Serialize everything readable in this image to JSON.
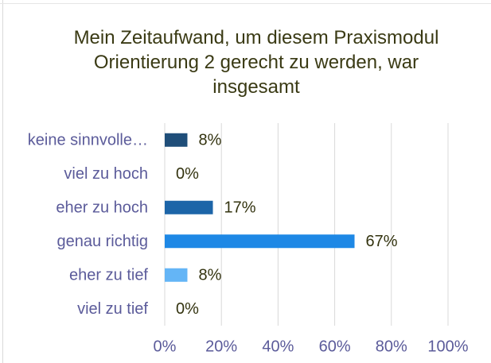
{
  "chart_data": {
    "type": "bar",
    "orientation": "horizontal",
    "title": "Mein Zeitaufwand, um diesem Praxismodul Orientierung 2 gerecht zu werden, war insgesamt",
    "categories": [
      "keine sinnvolle…",
      "viel zu hoch",
      "eher zu hoch",
      "genau richtig",
      "eher zu tief",
      "viel zu tief"
    ],
    "values": [
      8,
      0,
      17,
      67,
      8,
      0
    ],
    "value_labels": [
      "8%",
      "0%",
      "17%",
      "67%",
      "8%",
      "0%"
    ],
    "colors": [
      "#1f4e79",
      "#1f4e79",
      "#1c65a8",
      "#1e88e5",
      "#64b5f6",
      "#64b5f6"
    ],
    "xlim": [
      0,
      100
    ],
    "xticks": [
      {
        "value": 0,
        "label": "0%"
      },
      {
        "value": 20,
        "label": "20%"
      },
      {
        "value": 40,
        "label": "40%"
      },
      {
        "value": 60,
        "label": "60%"
      },
      {
        "value": 80,
        "label": "80%"
      },
      {
        "value": 100,
        "label": "100%"
      }
    ],
    "grid": true
  }
}
